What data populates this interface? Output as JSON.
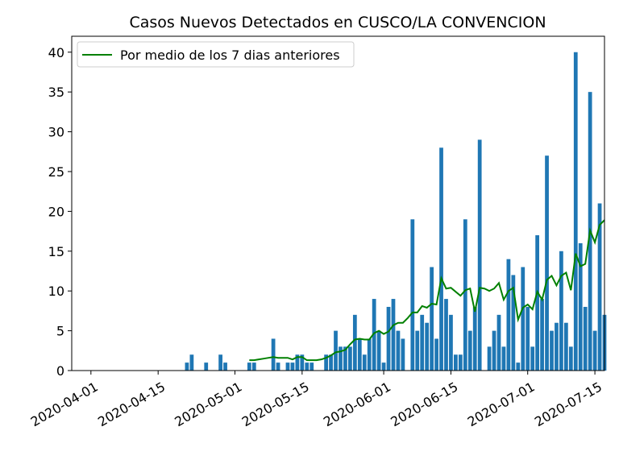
{
  "chart_data": {
    "type": "bar",
    "title": "Casos Nuevos Detectados en CUSCO/LA CONVENCION",
    "xlabel": "",
    "ylabel": "",
    "x_range": [
      "2020-03-28",
      "2020-07-17"
    ],
    "ylim": [
      0,
      42
    ],
    "y_ticks": [
      0,
      5,
      10,
      15,
      20,
      25,
      30,
      35,
      40
    ],
    "x_ticks": [
      "2020-04-01",
      "2020-04-15",
      "2020-05-01",
      "2020-05-15",
      "2020-06-01",
      "2020-06-15",
      "2020-07-01",
      "2020-07-15"
    ],
    "grid": false,
    "legend_position": "top-left",
    "bar_color": "#1f77b4",
    "line_color": "#008000",
    "series": [
      {
        "type": "bar",
        "points": [
          [
            "2020-04-21",
            1
          ],
          [
            "2020-04-22",
            2
          ],
          [
            "2020-04-25",
            1
          ],
          [
            "2020-04-28",
            2
          ],
          [
            "2020-04-29",
            1
          ],
          [
            "2020-05-04",
            1
          ],
          [
            "2020-05-05",
            1
          ],
          [
            "2020-05-09",
            4
          ],
          [
            "2020-05-10",
            1
          ],
          [
            "2020-05-12",
            1
          ],
          [
            "2020-05-13",
            1
          ],
          [
            "2020-05-14",
            2
          ],
          [
            "2020-05-15",
            2
          ],
          [
            "2020-05-16",
            1
          ],
          [
            "2020-05-17",
            1
          ],
          [
            "2020-05-20",
            2
          ],
          [
            "2020-05-21",
            2
          ],
          [
            "2020-05-22",
            5
          ],
          [
            "2020-05-23",
            3
          ],
          [
            "2020-05-24",
            3
          ],
          [
            "2020-05-25",
            3
          ],
          [
            "2020-05-26",
            7
          ],
          [
            "2020-05-27",
            4
          ],
          [
            "2020-05-28",
            2
          ],
          [
            "2020-05-29",
            4
          ],
          [
            "2020-05-30",
            9
          ],
          [
            "2020-05-31",
            5
          ],
          [
            "2020-06-01",
            1
          ],
          [
            "2020-06-02",
            8
          ],
          [
            "2020-06-03",
            9
          ],
          [
            "2020-06-04",
            5
          ],
          [
            "2020-06-05",
            4
          ],
          [
            "2020-06-07",
            19
          ],
          [
            "2020-06-08",
            5
          ],
          [
            "2020-06-09",
            7
          ],
          [
            "2020-06-10",
            6
          ],
          [
            "2020-06-11",
            13
          ],
          [
            "2020-06-12",
            4
          ],
          [
            "2020-06-13",
            28
          ],
          [
            "2020-06-14",
            9
          ],
          [
            "2020-06-15",
            7
          ],
          [
            "2020-06-16",
            2
          ],
          [
            "2020-06-17",
            2
          ],
          [
            "2020-06-18",
            19
          ],
          [
            "2020-06-19",
            5
          ],
          [
            "2020-06-20",
            8
          ],
          [
            "2020-06-21",
            29
          ],
          [
            "2020-06-23",
            3
          ],
          [
            "2020-06-24",
            5
          ],
          [
            "2020-06-25",
            7
          ],
          [
            "2020-06-26",
            3
          ],
          [
            "2020-06-27",
            14
          ],
          [
            "2020-06-28",
            12
          ],
          [
            "2020-06-29",
            1
          ],
          [
            "2020-06-30",
            13
          ],
          [
            "2020-07-01",
            8
          ],
          [
            "2020-07-02",
            3
          ],
          [
            "2020-07-03",
            17
          ],
          [
            "2020-07-04",
            9
          ],
          [
            "2020-07-05",
            27
          ],
          [
            "2020-07-06",
            5
          ],
          [
            "2020-07-07",
            6
          ],
          [
            "2020-07-08",
            15
          ],
          [
            "2020-07-09",
            6
          ],
          [
            "2020-07-10",
            3
          ],
          [
            "2020-07-11",
            40
          ],
          [
            "2020-07-12",
            16
          ],
          [
            "2020-07-13",
            8
          ],
          [
            "2020-07-14",
            35
          ],
          [
            "2020-07-15",
            5
          ],
          [
            "2020-07-16",
            21
          ],
          [
            "2020-07-17",
            7
          ]
        ]
      },
      {
        "type": "line",
        "name": "Por medio de los 7 dias anteriores",
        "points": [
          [
            "2020-05-04",
            1.3
          ],
          [
            "2020-05-05",
            1.3
          ],
          [
            "2020-05-06",
            1.4
          ],
          [
            "2020-05-07",
            1.5
          ],
          [
            "2020-05-08",
            1.6
          ],
          [
            "2020-05-09",
            1.7
          ],
          [
            "2020-05-10",
            1.6
          ],
          [
            "2020-05-11",
            1.6
          ],
          [
            "2020-05-12",
            1.6
          ],
          [
            "2020-05-13",
            1.4
          ],
          [
            "2020-05-14",
            1.7
          ],
          [
            "2020-05-15",
            1.7
          ],
          [
            "2020-05-16",
            1.3
          ],
          [
            "2020-05-17",
            1.3
          ],
          [
            "2020-05-18",
            1.3
          ],
          [
            "2020-05-19",
            1.4
          ],
          [
            "2020-05-20",
            1.6
          ],
          [
            "2020-05-21",
            1.9
          ],
          [
            "2020-05-22",
            2.3
          ],
          [
            "2020-05-23",
            2.4
          ],
          [
            "2020-05-24",
            2.6
          ],
          [
            "2020-05-25",
            3.3
          ],
          [
            "2020-05-26",
            3.9
          ],
          [
            "2020-05-27",
            4.0
          ],
          [
            "2020-05-28",
            3.9
          ],
          [
            "2020-05-29",
            3.9
          ],
          [
            "2020-05-30",
            4.7
          ],
          [
            "2020-05-31",
            5.0
          ],
          [
            "2020-06-01",
            4.6
          ],
          [
            "2020-06-02",
            4.9
          ],
          [
            "2020-06-03",
            5.7
          ],
          [
            "2020-06-04",
            6.0
          ],
          [
            "2020-06-05",
            6.0
          ],
          [
            "2020-06-06",
            6.6
          ],
          [
            "2020-06-07",
            7.3
          ],
          [
            "2020-06-08",
            7.3
          ],
          [
            "2020-06-09",
            8.1
          ],
          [
            "2020-06-10",
            7.9
          ],
          [
            "2020-06-11",
            8.4
          ],
          [
            "2020-06-12",
            8.3
          ],
          [
            "2020-06-13",
            11.6
          ],
          [
            "2020-06-14",
            10.3
          ],
          [
            "2020-06-15",
            10.4
          ],
          [
            "2020-06-16",
            9.9
          ],
          [
            "2020-06-17",
            9.4
          ],
          [
            "2020-06-18",
            10.1
          ],
          [
            "2020-06-19",
            10.3
          ],
          [
            "2020-06-20",
            7.4
          ],
          [
            "2020-06-21",
            10.4
          ],
          [
            "2020-06-22",
            10.3
          ],
          [
            "2020-06-23",
            10.0
          ],
          [
            "2020-06-24",
            10.3
          ],
          [
            "2020-06-25",
            11.0
          ],
          [
            "2020-06-26",
            8.9
          ],
          [
            "2020-06-27",
            10.0
          ],
          [
            "2020-06-28",
            10.4
          ],
          [
            "2020-06-29",
            6.4
          ],
          [
            "2020-06-30",
            7.9
          ],
          [
            "2020-07-01",
            8.3
          ],
          [
            "2020-07-02",
            7.7
          ],
          [
            "2020-07-03",
            9.9
          ],
          [
            "2020-07-04",
            8.9
          ],
          [
            "2020-07-05",
            11.4
          ],
          [
            "2020-07-06",
            11.9
          ],
          [
            "2020-07-07",
            10.7
          ],
          [
            "2020-07-08",
            11.9
          ],
          [
            "2020-07-09",
            12.3
          ],
          [
            "2020-07-10",
            10.1
          ],
          [
            "2020-07-11",
            14.7
          ],
          [
            "2020-07-12",
            13.1
          ],
          [
            "2020-07-13",
            13.4
          ],
          [
            "2020-07-14",
            17.6
          ],
          [
            "2020-07-15",
            16.1
          ],
          [
            "2020-07-16",
            18.3
          ],
          [
            "2020-07-17",
            18.9
          ]
        ]
      }
    ]
  }
}
